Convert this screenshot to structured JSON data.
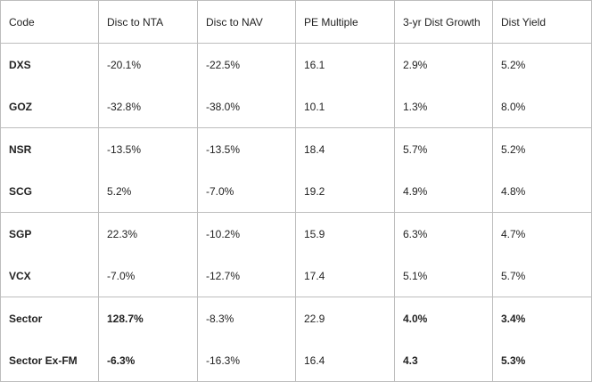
{
  "table": {
    "headers": [
      "Code",
      "Disc to NTA",
      "Disc to NAV",
      "PE Multiple",
      "3-yr Dist Growth",
      "Dist Yield"
    ],
    "rows": [
      {
        "code": "DXS",
        "disc_nta": "-20.1%",
        "disc_nav": "-22.5%",
        "pe": "16.1",
        "growth": "2.9%",
        "yield": "5.2%"
      },
      {
        "code": "GOZ",
        "disc_nta": "-32.8%",
        "disc_nav": "-38.0%",
        "pe": "10.1",
        "growth": "1.3%",
        "yield": "8.0%"
      },
      {
        "code": "NSR",
        "disc_nta": "-13.5%",
        "disc_nav": "-13.5%",
        "pe": "18.4",
        "growth": "5.7%",
        "yield": "5.2%"
      },
      {
        "code": "SCG",
        "disc_nta": "5.2%",
        "disc_nav": "-7.0%",
        "pe": "19.2",
        "growth": "4.9%",
        "yield": "4.8%"
      },
      {
        "code": "SGP",
        "disc_nta": "22.3%",
        "disc_nav": "-10.2%",
        "pe": "15.9",
        "growth": "6.3%",
        "yield": "4.7%"
      },
      {
        "code": "VCX",
        "disc_nta": "-7.0%",
        "disc_nav": "-12.7%",
        "pe": "17.4",
        "growth": "5.1%",
        "yield": "5.7%"
      },
      {
        "code": "Sector",
        "disc_nta": "128.7%",
        "disc_nav": "-8.3%",
        "pe": "22.9",
        "growth": "4.0%",
        "yield": "3.4%"
      },
      {
        "code": "Sector Ex-FM",
        "disc_nta": "-6.3%",
        "disc_nav": "-16.3%",
        "pe": "16.4",
        "growth": "4.3",
        "yield": "5.3%"
      }
    ]
  }
}
